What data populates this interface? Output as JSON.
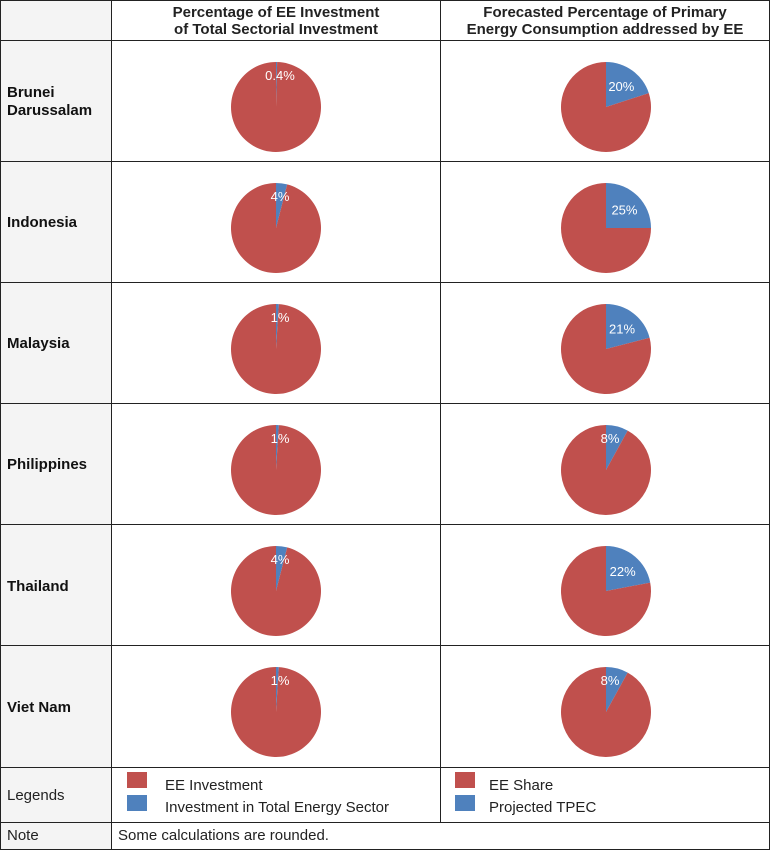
{
  "headers": {
    "col1": "Percentage of EE Investment of Total Sectorial Investment",
    "col1_lines": [
      "Percentage of EE Investment",
      "of Total Sectorial Investment"
    ],
    "col2_lines": [
      "Forecasted Percentage of Primary",
      "Energy Consumption addressed by EE"
    ]
  },
  "colors": {
    "red": "#c0504d",
    "blue": "#4f81bd",
    "label": "#ffffff"
  },
  "chart_data": [
    {
      "type": "pie",
      "country": "Brunei Darussalam",
      "chart": "ee_investment",
      "slices": [
        {
          "name": "Investment in Total Energy Sector",
          "value": 0.4
        },
        {
          "name": "EE Investment",
          "value": 99.6
        }
      ],
      "label": "0.4%"
    },
    {
      "type": "pie",
      "country": "Brunei Darussalam",
      "chart": "tpec",
      "slices": [
        {
          "name": "Projected TPEC",
          "value": 20
        },
        {
          "name": "EE Share",
          "value": 80
        }
      ],
      "label": "20%"
    },
    {
      "type": "pie",
      "country": "Indonesia",
      "chart": "ee_investment",
      "slices": [
        {
          "name": "Investment in Total Energy Sector",
          "value": 4
        },
        {
          "name": "EE Investment",
          "value": 96
        }
      ],
      "label": "4%"
    },
    {
      "type": "pie",
      "country": "Indonesia",
      "chart": "tpec",
      "slices": [
        {
          "name": "Projected TPEC",
          "value": 25
        },
        {
          "name": "EE Share",
          "value": 75
        }
      ],
      "label": "25%"
    },
    {
      "type": "pie",
      "country": "Malaysia",
      "chart": "ee_investment",
      "slices": [
        {
          "name": "Investment in Total Energy Sector",
          "value": 1
        },
        {
          "name": "EE Investment",
          "value": 99
        }
      ],
      "label": "1%"
    },
    {
      "type": "pie",
      "country": "Malaysia",
      "chart": "tpec",
      "slices": [
        {
          "name": "Projected TPEC",
          "value": 21
        },
        {
          "name": "EE Share",
          "value": 79
        }
      ],
      "label": "21%"
    },
    {
      "type": "pie",
      "country": "Philippines",
      "chart": "ee_investment",
      "slices": [
        {
          "name": "Investment in Total Energy Sector",
          "value": 1
        },
        {
          "name": "EE Investment",
          "value": 99
        }
      ],
      "label": "1%"
    },
    {
      "type": "pie",
      "country": "Philippines",
      "chart": "tpec",
      "slices": [
        {
          "name": "Projected TPEC",
          "value": 8
        },
        {
          "name": "EE Share",
          "value": 92
        }
      ],
      "label": "8%"
    },
    {
      "type": "pie",
      "country": "Thailand",
      "chart": "ee_investment",
      "slices": [
        {
          "name": "Investment in Total Energy Sector",
          "value": 4
        },
        {
          "name": "EE Investment",
          "value": 96
        }
      ],
      "label": "4%"
    },
    {
      "type": "pie",
      "country": "Thailand",
      "chart": "tpec",
      "slices": [
        {
          "name": "Projected TPEC",
          "value": 22
        },
        {
          "name": "EE Share",
          "value": 78
        }
      ],
      "label": "22%"
    },
    {
      "type": "pie",
      "country": "Viet Nam",
      "chart": "ee_investment",
      "slices": [
        {
          "name": "Investment in Total Energy Sector",
          "value": 1
        },
        {
          "name": "EE Investment",
          "value": 99
        }
      ],
      "label": "1%"
    },
    {
      "type": "pie",
      "country": "Viet Nam",
      "chart": "tpec",
      "slices": [
        {
          "name": "Projected TPEC",
          "value": 8
        },
        {
          "name": "EE Share",
          "value": 92
        }
      ],
      "label": "8%"
    }
  ],
  "countries": [
    {
      "lines": [
        "Brunei",
        "Darussalam"
      ]
    },
    {
      "lines": [
        "Indonesia"
      ]
    },
    {
      "lines": [
        "Malaysia"
      ]
    },
    {
      "lines": [
        "Philippines"
      ]
    },
    {
      "lines": [
        "Thailand"
      ]
    },
    {
      "lines": [
        "Viet Nam"
      ]
    }
  ],
  "legend": {
    "label": "Legends",
    "left": [
      {
        "name": "EE Investment",
        "color": "#c0504d"
      },
      {
        "name": "Investment in Total Energy Sector",
        "color": "#4f81bd"
      }
    ],
    "right": [
      {
        "name": "EE Share",
        "color": "#c0504d"
      },
      {
        "name": "Projected TPEC",
        "color": "#4f81bd"
      }
    ]
  },
  "note": {
    "label": "Note",
    "text": "Some calculations are rounded."
  }
}
